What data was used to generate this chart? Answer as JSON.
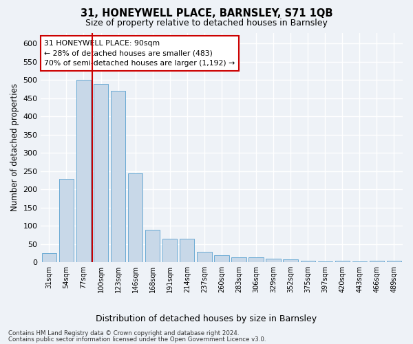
{
  "title": "31, HONEYWELL PLACE, BARNSLEY, S71 1QB",
  "subtitle": "Size of property relative to detached houses in Barnsley",
  "xlabel": "Distribution of detached houses by size in Barnsley",
  "ylabel": "Number of detached properties",
  "footnote1": "Contains HM Land Registry data © Crown copyright and database right 2024.",
  "footnote2": "Contains public sector information licensed under the Open Government Licence v3.0.",
  "annotation_line1": "31 HONEYWELL PLACE: 90sqm",
  "annotation_line2": "← 28% of detached houses are smaller (483)",
  "annotation_line3": "70% of semi-detached houses are larger (1,192) →",
  "bar_color": "#c8d8e8",
  "bar_edge_color": "#6aaad4",
  "vline_color": "#cc0000",
  "categories": [
    "31sqm",
    "54sqm",
    "77sqm",
    "100sqm",
    "123sqm",
    "146sqm",
    "168sqm",
    "191sqm",
    "214sqm",
    "237sqm",
    "260sqm",
    "283sqm",
    "306sqm",
    "329sqm",
    "352sqm",
    "375sqm",
    "397sqm",
    "420sqm",
    "443sqm",
    "466sqm",
    "489sqm"
  ],
  "values": [
    25,
    230,
    500,
    490,
    470,
    245,
    90,
    65,
    65,
    30,
    20,
    15,
    15,
    10,
    8,
    5,
    3,
    5,
    3,
    5,
    5
  ],
  "ylim": [
    0,
    630
  ],
  "yticks": [
    0,
    50,
    100,
    150,
    200,
    250,
    300,
    350,
    400,
    450,
    500,
    550,
    600
  ],
  "vline_x_index": 2.5,
  "background_color": "#eef2f7",
  "plot_bg_color": "#eef2f7",
  "grid_color": "#ffffff",
  "annotation_box_facecolor": "#ffffff",
  "annotation_box_edgecolor": "#cc0000"
}
